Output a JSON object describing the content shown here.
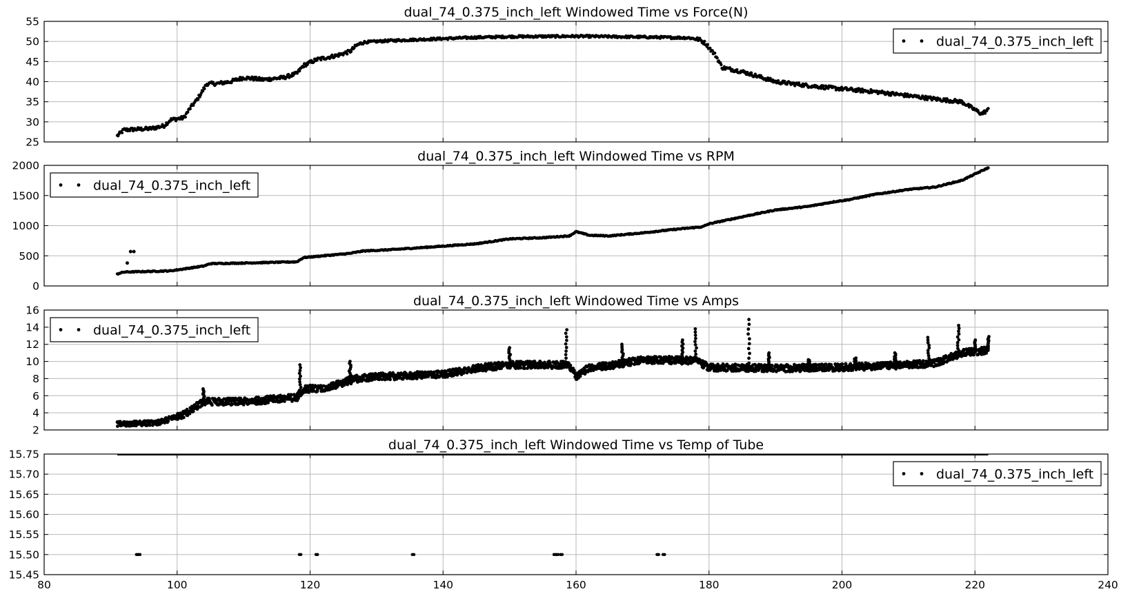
{
  "chart_data": [
    {
      "type": "scatter",
      "title": "dual_74_0.375_inch_left Windowed Time vs Force(N)",
      "legend": {
        "label": "dual_74_0.375_inch_left",
        "position": "top-right"
      },
      "xlim": [
        80,
        240
      ],
      "xticks": [],
      "ylim": [
        25,
        55
      ],
      "yticks": [
        "25",
        "30",
        "35",
        "40",
        "45",
        "50",
        "55"
      ],
      "grid": true,
      "series": [
        {
          "name": "dual_74_0.375_inch_left",
          "x_range": [
            91,
            222
          ],
          "trend": [
            [
              91,
              26.5
            ],
            [
              92,
              28
            ],
            [
              96,
              28.3
            ],
            [
              98,
              29
            ],
            [
              99,
              30.5
            ],
            [
              101,
              31
            ],
            [
              102,
              33.5
            ],
            [
              103,
              35.5
            ],
            [
              104.5,
              39.5
            ],
            [
              106,
              39.5
            ],
            [
              108,
              40
            ],
            [
              110,
              41
            ],
            [
              113,
              40.5
            ],
            [
              116,
              41
            ],
            [
              118,
              42
            ],
            [
              119,
              44
            ],
            [
              121,
              45.5
            ],
            [
              124,
              46.5
            ],
            [
              126,
              47.5
            ],
            [
              127,
              49
            ],
            [
              128,
              49.8
            ],
            [
              132,
              50.2
            ],
            [
              140,
              50.7
            ],
            [
              145,
              51
            ],
            [
              150,
              51.2
            ],
            [
              160,
              51.3
            ],
            [
              170,
              51.1
            ],
            [
              177,
              50.9
            ],
            [
              178.5,
              50.5
            ],
            [
              179.5,
              49.5
            ],
            [
              181,
              46.5
            ],
            [
              182,
              43.5
            ],
            [
              185,
              42.5
            ],
            [
              188,
              41
            ],
            [
              190,
              40
            ],
            [
              195,
              39
            ],
            [
              200,
              38.2
            ],
            [
              205,
              37.5
            ],
            [
              210,
              36.5
            ],
            [
              215,
              35.5
            ],
            [
              218,
              35
            ],
            [
              220,
              33
            ],
            [
              221,
              32
            ],
            [
              222,
              33
            ]
          ],
          "noise": 0.45
        }
      ]
    },
    {
      "type": "scatter",
      "title": "dual_74_0.375_inch_left Windowed Time vs RPM",
      "legend": {
        "label": "dual_74_0.375_inch_left",
        "position": "top-left"
      },
      "xlim": [
        80,
        240
      ],
      "xticks": [],
      "ylim": [
        0,
        2000
      ],
      "yticks": [
        "0",
        "500",
        "1000",
        "1500",
        "2000"
      ],
      "grid": true,
      "series": [
        {
          "name": "dual_74_0.375_inch_left",
          "x_range": [
            91,
            222
          ],
          "trend": [
            [
              91,
              200
            ],
            [
              92,
              230
            ],
            [
              99,
              250
            ],
            [
              104,
              330
            ],
            [
              105,
              370
            ],
            [
              110,
              380
            ],
            [
              118,
              400
            ],
            [
              119,
              470
            ],
            [
              122,
              500
            ],
            [
              126,
              540
            ],
            [
              128,
              580
            ],
            [
              132,
              600
            ],
            [
              140,
              660
            ],
            [
              145,
              700
            ],
            [
              150,
              780
            ],
            [
              155,
              800
            ],
            [
              159,
              830
            ],
            [
              160,
              900
            ],
            [
              162,
              840
            ],
            [
              165,
              830
            ],
            [
              170,
              880
            ],
            [
              175,
              940
            ],
            [
              179,
              980
            ],
            [
              180,
              1030
            ],
            [
              183,
              1100
            ],
            [
              186,
              1170
            ],
            [
              190,
              1260
            ],
            [
              195,
              1320
            ],
            [
              199,
              1400
            ],
            [
              201,
              1430
            ],
            [
              205,
              1520
            ],
            [
              210,
              1600
            ],
            [
              214,
              1640
            ],
            [
              218,
              1750
            ],
            [
              222,
              1960
            ]
          ],
          "outliers": [
            [
              92.5,
              380
            ],
            [
              93,
              570
            ],
            [
              93.5,
              570
            ]
          ],
          "noise": 8
        }
      ]
    },
    {
      "type": "scatter",
      "title": "dual_74_0.375_inch_left Windowed Time vs Amps",
      "legend": {
        "label": "dual_74_0.375_inch_left",
        "position": "top-left"
      },
      "xlim": [
        80,
        240
      ],
      "xticks": [],
      "ylim": [
        2,
        16
      ],
      "yticks": [
        "2",
        "4",
        "6",
        "8",
        "10",
        "12",
        "14",
        "16"
      ],
      "grid": true,
      "series": [
        {
          "name": "dual_74_0.375_inch_left",
          "x_range": [
            91,
            222
          ],
          "trend": [
            [
              91,
              2.7
            ],
            [
              97,
              2.8
            ],
            [
              99,
              3.3
            ],
            [
              101,
              3.8
            ],
            [
              104,
              5.3
            ],
            [
              110,
              5.3
            ],
            [
              118,
              5.8
            ],
            [
              119,
              6.8
            ],
            [
              122,
              6.8
            ],
            [
              127,
              8
            ],
            [
              130,
              8.2
            ],
            [
              140,
              8.5
            ],
            [
              145,
              9.2
            ],
            [
              150,
              9.6
            ],
            [
              158,
              9.6
            ],
            [
              159,
              9.5
            ],
            [
              160,
              8.3
            ],
            [
              162,
              9.3
            ],
            [
              165,
              9.5
            ],
            [
              170,
              10.2
            ],
            [
              178,
              10.1
            ],
            [
              180,
              9.3
            ],
            [
              190,
              9.2
            ],
            [
              200,
              9.3
            ],
            [
              210,
              9.6
            ],
            [
              214,
              9.8
            ],
            [
              218,
              11
            ],
            [
              222,
              11.3
            ]
          ],
          "spikes": [
            [
              104,
              6.8
            ],
            [
              118.5,
              9.6
            ],
            [
              126,
              10
            ],
            [
              150,
              11.6
            ],
            [
              158.5,
              13.7
            ],
            [
              167,
              12
            ],
            [
              176,
              12.5
            ],
            [
              178,
              13.8
            ],
            [
              186,
              14.9
            ],
            [
              189,
              11
            ],
            [
              195,
              10.2
            ],
            [
              202,
              10.4
            ],
            [
              208,
              11
            ],
            [
              213,
              12.8
            ],
            [
              217.5,
              14.2
            ],
            [
              220,
              12.5
            ],
            [
              222,
              12.9
            ]
          ],
          "noise": 0.42
        }
      ]
    },
    {
      "type": "scatter",
      "title": "dual_74_0.375_inch_left Windowed Time vs Temp of Tube",
      "legend": {
        "label": "dual_74_0.375_inch_left",
        "position": "top-right"
      },
      "xlim": [
        80,
        240
      ],
      "xticks": [
        "80",
        "100",
        "120",
        "140",
        "160",
        "180",
        "200",
        "220",
        "240"
      ],
      "ylim": [
        15.45,
        15.75
      ],
      "yticks": [
        "15.45",
        "15.50",
        "15.55",
        "15.60",
        "15.65",
        "15.70",
        "15.75"
      ],
      "grid": true,
      "series": [
        {
          "name": "dual_74_0.375_inch_left",
          "x_range": [
            91,
            222
          ],
          "constant": 15.75,
          "low_points": {
            "y": 15.5,
            "x": [
              94,
              94.3,
              118.5,
              121,
              135.5,
              156.8,
              157.2,
              157.8,
              172.3,
              173.2
            ]
          }
        }
      ]
    }
  ]
}
